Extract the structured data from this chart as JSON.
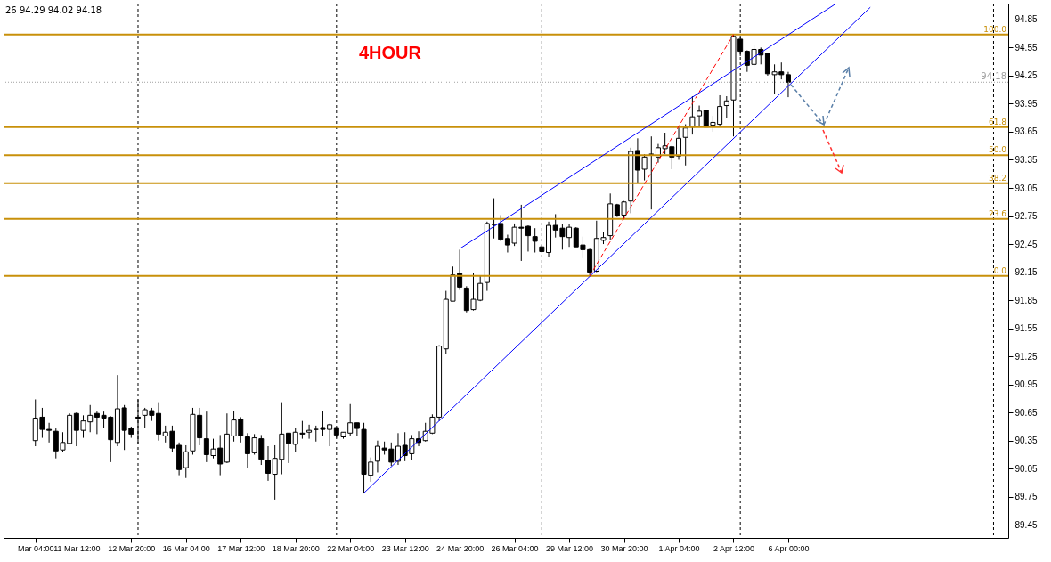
{
  "chart_data": {
    "type": "candlestick",
    "title": "4HOUR",
    "color": "#000000",
    "categories": [
      "Mar 04:00",
      null,
      null,
      null,
      null,
      null,
      "11 Mar 12:00",
      null,
      null,
      null,
      null,
      null,
      null,
      null,
      "12 Mar 20:00",
      null,
      null,
      null,
      null,
      null,
      null,
      null,
      "16 Mar 04:00",
      null,
      null,
      null,
      null,
      null,
      null,
      null,
      "17 Mar 12:00",
      null,
      null,
      null,
      null,
      null,
      null,
      null,
      "18 Mar 20:00",
      null,
      null,
      null,
      null,
      null,
      null,
      null,
      "22 Mar 04:00",
      null,
      null,
      null,
      null,
      null,
      null,
      null,
      "23 Mar 12:00",
      null,
      null,
      null,
      null,
      null,
      null,
      null,
      "24 Mar 20:00",
      null,
      null,
      null,
      null,
      null,
      null,
      null,
      "26 Mar 04:00",
      null,
      null,
      null,
      null,
      null,
      null,
      null,
      "29 Mar 12:00",
      null,
      null,
      null,
      null,
      null,
      null,
      null,
      "30 Mar 20:00",
      null,
      null,
      null,
      null,
      null,
      null,
      null,
      "1 Apr 04:00",
      null,
      null,
      null,
      null,
      null,
      null,
      null,
      "2 Apr 12:00",
      null,
      null,
      null,
      null,
      null,
      null,
      null,
      "6 Apr 00:00",
      null,
      null,
      null,
      null,
      null,
      null,
      null,
      null,
      null,
      null,
      null,
      null,
      null,
      null,
      null,
      null,
      null,
      null,
      null,
      null,
      null,
      null,
      null,
      null,
      null,
      null,
      null,
      null,
      null,
      null,
      null
    ],
    "ohlc": [
      [
        90.35,
        90.79,
        90.29,
        90.59
      ],
      [
        90.6,
        90.7,
        90.38,
        90.47
      ],
      [
        90.47,
        90.54,
        90.33,
        90.46
      ],
      [
        90.45,
        90.48,
        90.16,
        90.24
      ],
      [
        90.25,
        90.44,
        90.23,
        90.33
      ],
      [
        90.32,
        90.64,
        90.31,
        90.62
      ],
      [
        90.64,
        90.65,
        90.29,
        90.46
      ],
      [
        90.46,
        90.62,
        90.38,
        90.56
      ],
      [
        90.55,
        90.73,
        90.44,
        90.62
      ],
      [
        90.64,
        90.66,
        90.42,
        90.6
      ],
      [
        90.62,
        90.66,
        90.49,
        90.59
      ],
      [
        90.6,
        90.61,
        90.12,
        90.36
      ],
      [
        90.33,
        91.05,
        90.29,
        90.69
      ],
      [
        90.7,
        90.73,
        90.25,
        90.46
      ],
      [
        90.48,
        90.5,
        90.38,
        90.42
      ],
      [
        90.6,
        90.79,
        90.32,
        90.59
      ],
      [
        90.62,
        90.7,
        90.49,
        90.68
      ],
      [
        90.67,
        90.7,
        90.56,
        90.62
      ],
      [
        90.64,
        90.76,
        90.35,
        90.42
      ],
      [
        90.4,
        90.51,
        90.33,
        90.44
      ],
      [
        90.45,
        90.51,
        90.23,
        90.27
      ],
      [
        90.3,
        90.33,
        89.98,
        90.04
      ],
      [
        90.06,
        90.3,
        89.95,
        90.23
      ],
      [
        90.24,
        90.7,
        90.2,
        90.63
      ],
      [
        90.62,
        90.7,
        90.3,
        90.38
      ],
      [
        90.37,
        90.66,
        90.12,
        90.2
      ],
      [
        90.19,
        90.37,
        90.16,
        90.26
      ],
      [
        90.27,
        90.41,
        89.98,
        90.1
      ],
      [
        90.12,
        90.64,
        90.11,
        90.42
      ],
      [
        90.4,
        90.67,
        90.34,
        90.57
      ],
      [
        90.58,
        90.6,
        90.33,
        90.4
      ],
      [
        90.39,
        90.43,
        90.06,
        90.21
      ],
      [
        90.22,
        90.42,
        90.2,
        90.38
      ],
      [
        90.37,
        90.41,
        90.09,
        90.15
      ],
      [
        90.14,
        90.29,
        89.92,
        90.0
      ],
      [
        89.99,
        90.3,
        89.72,
        90.16
      ],
      [
        90.15,
        90.76,
        89.99,
        90.42
      ],
      [
        90.43,
        90.43,
        90.11,
        90.32
      ],
      [
        90.31,
        90.49,
        90.23,
        90.44
      ],
      [
        90.43,
        90.56,
        90.37,
        90.42
      ],
      [
        90.44,
        90.52,
        90.37,
        90.46
      ],
      [
        90.47,
        90.51,
        90.34,
        90.47
      ],
      [
        90.49,
        90.67,
        90.4,
        90.47
      ],
      [
        90.47,
        90.53,
        90.29,
        90.52
      ],
      [
        90.49,
        90.49,
        90.38,
        90.41
      ],
      [
        90.39,
        90.44,
        90.37,
        90.44
      ],
      [
        90.43,
        90.74,
        90.4,
        90.54
      ],
      [
        90.54,
        90.54,
        90.4,
        90.48
      ],
      [
        90.47,
        90.54,
        89.79,
        89.99
      ],
      [
        89.98,
        90.17,
        89.91,
        90.12
      ],
      [
        90.13,
        90.35,
        90.01,
        90.29
      ],
      [
        90.27,
        90.34,
        90.2,
        90.25
      ],
      [
        90.26,
        90.33,
        90.08,
        90.12
      ],
      [
        90.13,
        90.43,
        90.09,
        90.29
      ],
      [
        90.3,
        90.44,
        90.13,
        90.19
      ],
      [
        90.21,
        90.41,
        90.14,
        90.37
      ],
      [
        90.37,
        90.45,
        90.29,
        90.33
      ],
      [
        90.35,
        90.54,
        90.34,
        90.45
      ],
      [
        90.43,
        90.63,
        90.42,
        90.6
      ],
      [
        90.6,
        91.37,
        90.56,
        91.36
      ],
      [
        91.33,
        91.95,
        91.28,
        91.86
      ],
      [
        91.84,
        92.21,
        91.84,
        92.12
      ],
      [
        92.14,
        92.39,
        91.96,
        91.99
      ],
      [
        91.98,
        92.0,
        91.72,
        91.74
      ],
      [
        91.75,
        92.14,
        91.74,
        91.86
      ],
      [
        91.85,
        92.11,
        91.84,
        92.03
      ],
      [
        92.04,
        92.69,
        91.95,
        92.67
      ],
      [
        92.66,
        92.94,
        92.51,
        92.66
      ],
      [
        92.67,
        92.76,
        92.48,
        92.5
      ],
      [
        92.51,
        92.55,
        92.36,
        92.44
      ],
      [
        92.46,
        92.67,
        92.43,
        92.63
      ],
      [
        92.63,
        92.87,
        92.27,
        92.62
      ],
      [
        92.64,
        92.65,
        92.37,
        92.54
      ],
      [
        92.53,
        92.62,
        92.36,
        92.48
      ],
      [
        92.42,
        92.44,
        92.36,
        92.37
      ],
      [
        92.36,
        92.69,
        92.31,
        92.65
      ],
      [
        92.65,
        92.77,
        92.52,
        92.6
      ],
      [
        92.62,
        92.66,
        92.39,
        92.53
      ],
      [
        92.52,
        92.66,
        92.42,
        92.63
      ],
      [
        92.62,
        92.63,
        92.42,
        92.42
      ],
      [
        92.44,
        92.53,
        92.3,
        92.39
      ],
      [
        92.39,
        92.4,
        92.11,
        92.15
      ],
      [
        92.16,
        92.7,
        92.15,
        92.51
      ],
      [
        92.49,
        92.58,
        92.45,
        92.52
      ],
      [
        92.54,
        92.99,
        92.49,
        92.88
      ],
      [
        92.87,
        92.88,
        92.74,
        92.75
      ],
      [
        92.76,
        92.91,
        92.72,
        92.9
      ],
      [
        92.91,
        93.48,
        92.78,
        93.44
      ],
      [
        93.45,
        93.58,
        93.1,
        93.24
      ],
      [
        93.25,
        93.41,
        93.13,
        93.38
      ],
      [
        93.41,
        93.6,
        92.82,
        93.41
      ],
      [
        93.38,
        93.52,
        93.32,
        93.48
      ],
      [
        93.47,
        93.64,
        93.41,
        93.5
      ],
      [
        93.49,
        93.5,
        93.25,
        93.38
      ],
      [
        93.39,
        93.71,
        93.35,
        93.58
      ],
      [
        93.59,
        93.73,
        93.29,
        93.69
      ],
      [
        93.7,
        94.03,
        93.62,
        93.81
      ],
      [
        93.82,
        93.93,
        93.71,
        93.87
      ],
      [
        93.88,
        93.88,
        93.7,
        93.7
      ],
      [
        93.72,
        93.82,
        93.65,
        93.75
      ],
      [
        93.73,
        94.04,
        93.71,
        93.92
      ],
      [
        93.93,
        94.03,
        93.8,
        93.98
      ],
      [
        93.99,
        94.69,
        93.6,
        94.67
      ],
      [
        94.64,
        94.66,
        94.46,
        94.51
      ],
      [
        94.51,
        94.52,
        94.29,
        94.36
      ],
      [
        94.37,
        94.58,
        94.35,
        94.53
      ],
      [
        94.53,
        94.55,
        94.37,
        94.47
      ],
      [
        94.49,
        94.49,
        94.25,
        94.27
      ],
      [
        94.26,
        94.37,
        94.05,
        94.29
      ],
      [
        94.29,
        94.39,
        94.21,
        94.26
      ],
      [
        94.26,
        94.29,
        94.02,
        94.18
      ],
      null,
      null,
      null,
      null,
      null,
      null,
      null,
      null,
      null,
      null,
      null,
      null,
      null,
      null,
      null,
      null,
      null,
      null,
      null,
      null,
      null,
      null,
      null,
      null,
      null,
      null,
      null,
      null,
      null,
      null,
      null
    ],
    "series": [
      {
        "type": "line",
        "color": "#0000ff",
        "line_style": "solid",
        "values": [
          null,
          null,
          null,
          null,
          null,
          null,
          null,
          null,
          null,
          null,
          null,
          null,
          null,
          null,
          null,
          null,
          null,
          null,
          null,
          null,
          null,
          null,
          null,
          null,
          null,
          null,
          null,
          null,
          null,
          null,
          null,
          null,
          null,
          null,
          null,
          null,
          null,
          null,
          null,
          null,
          null,
          null,
          null,
          null,
          null,
          null,
          null,
          null,
          null,
          null,
          null,
          null,
          null,
          null,
          null,
          null,
          null,
          null,
          null,
          null,
          null,
          null,
          92.4,
          null,
          null,
          null,
          null,
          null,
          null,
          null,
          null,
          null,
          null,
          null,
          null,
          null,
          null,
          null,
          null,
          null,
          null,
          null,
          null,
          null,
          null,
          null,
          null,
          null,
          null,
          null,
          null,
          null,
          null,
          null,
          null,
          null,
          null,
          null,
          null,
          null,
          null,
          null,
          null,
          null,
          null,
          null,
          null,
          null,
          null,
          null,
          null,
          null,
          null,
          null,
          null,
          null,
          null,
          95.02,
          null,
          null,
          null,
          null,
          null,
          null,
          null,
          null,
          null,
          null,
          null,
          null,
          null,
          null,
          null,
          null,
          null,
          null,
          null,
          null,
          null,
          null,
          null,
          null
        ]
      },
      {
        "type": "line",
        "color": "#0000ff",
        "line_style": "solid",
        "values": [
          null,
          null,
          null,
          null,
          null,
          null,
          null,
          null,
          null,
          null,
          null,
          null,
          null,
          null,
          null,
          null,
          null,
          null,
          null,
          null,
          null,
          null,
          null,
          null,
          null,
          null,
          null,
          null,
          null,
          null,
          null,
          null,
          null,
          null,
          null,
          null,
          null,
          null,
          null,
          null,
          null,
          null,
          null,
          null,
          null,
          null,
          null,
          null,
          89.79,
          null,
          null,
          null,
          null,
          null,
          null,
          null,
          null,
          null,
          null,
          null,
          null,
          null,
          null,
          null,
          null,
          null,
          null,
          null,
          null,
          null,
          null,
          null,
          null,
          null,
          null,
          null,
          null,
          null,
          null,
          null,
          null,
          null,
          null,
          null,
          null,
          null,
          null,
          null,
          null,
          null,
          null,
          null,
          null,
          null,
          null,
          null,
          null,
          null,
          null,
          null,
          null,
          null,
          null,
          null,
          null,
          null,
          null,
          null,
          null,
          null,
          null,
          null,
          null,
          null,
          null,
          null,
          null,
          null,
          null,
          null,
          null,
          null,
          94.98,
          null,
          null,
          null,
          null,
          null,
          null,
          null,
          null,
          null,
          null,
          null,
          null,
          null,
          null,
          null,
          null,
          null,
          null,
          null
        ]
      },
      {
        "type": "line",
        "color": "#ff0000",
        "line_style": "dashed",
        "values": [
          null,
          null,
          null,
          null,
          null,
          null,
          null,
          null,
          null,
          null,
          null,
          null,
          null,
          null,
          null,
          null,
          null,
          null,
          null,
          null,
          null,
          null,
          null,
          null,
          null,
          null,
          null,
          null,
          null,
          null,
          null,
          null,
          null,
          null,
          null,
          null,
          null,
          null,
          null,
          null,
          null,
          null,
          null,
          null,
          null,
          null,
          null,
          null,
          null,
          null,
          null,
          null,
          null,
          null,
          null,
          null,
          null,
          null,
          null,
          null,
          null,
          null,
          null,
          null,
          null,
          null,
          null,
          null,
          null,
          null,
          null,
          null,
          null,
          null,
          null,
          null,
          null,
          null,
          null,
          null,
          null,
          92.11,
          null,
          null,
          null,
          null,
          null,
          null,
          null,
          null,
          null,
          null,
          null,
          null,
          null,
          null,
          null,
          null,
          null,
          null,
          null,
          null,
          94.69,
          null,
          null,
          null,
          null,
          null,
          null,
          null,
          null,
          null,
          null,
          null,
          null,
          null,
          null,
          null,
          null,
          null,
          null,
          null,
          null,
          null,
          null,
          null,
          null,
          null,
          null,
          null,
          null,
          null,
          null,
          null,
          null,
          null,
          null,
          null,
          null,
          null,
          null,
          null
        ]
      }
    ],
    "ylim": [
      89.31,
      95.02
    ],
    "yticks": [
      89.45,
      89.75,
      90.05,
      90.35,
      90.65,
      90.95,
      91.25,
      91.55,
      91.85,
      92.15,
      92.45,
      92.75,
      93.05,
      93.35,
      93.65,
      93.95,
      94.25,
      94.55,
      94.85
    ],
    "ref_lines": [
      {
        "axis": "y",
        "value": 94.69,
        "color": "#c8900a"
      },
      {
        "axis": "y",
        "value": 93.7,
        "color": "#c8900a"
      },
      {
        "axis": "y",
        "value": 93.4,
        "color": "#c8900a"
      },
      {
        "axis": "y",
        "value": 93.1,
        "color": "#c8900a"
      },
      {
        "axis": "y",
        "value": 92.72,
        "color": "#c8900a"
      },
      {
        "axis": "y",
        "value": 92.11,
        "color": "#c8900a"
      },
      {
        "axis": "y",
        "value": 94.18,
        "label": "94.18",
        "color": "#a0a0a0",
        "line_style": "dotted"
      }
    ],
    "annotations": [
      "26 94.29 94.02 94.18",
      {
        "text": "100.0",
        "y": 94.69
      },
      {
        "text": "61.8",
        "y": 93.7
      },
      {
        "text": "50.0",
        "y": 93.4
      },
      {
        "text": "38.2",
        "y": 93.1
      },
      {
        "text": "23.6",
        "y": 92.72
      },
      {
        "text": "0.0",
        "y": 92.11
      }
    ]
  }
}
